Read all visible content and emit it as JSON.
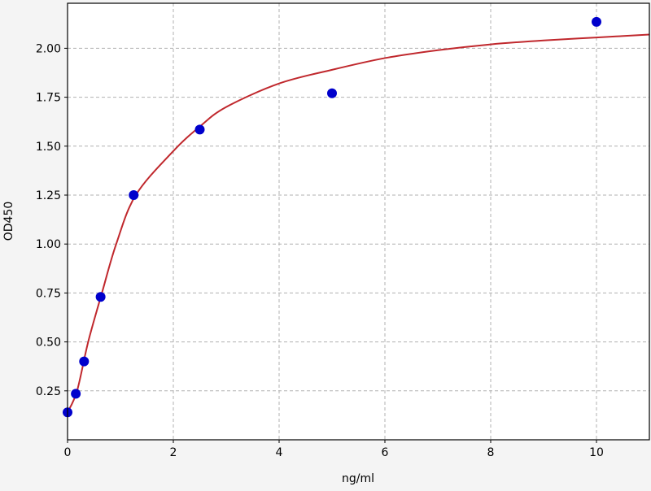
{
  "chart_data": {
    "type": "scatter",
    "title": "",
    "xlabel": "ng/ml",
    "ylabel": "OD450",
    "xlim": [
      0,
      11
    ],
    "ylim": [
      0.0,
      2.23
    ],
    "grid": true,
    "x_ticks": [
      0,
      2,
      4,
      6,
      8,
      10
    ],
    "x_tick_labels": [
      "0",
      "2",
      "4",
      "6",
      "8",
      "10"
    ],
    "y_ticks": [
      0.25,
      0.5,
      0.75,
      1.0,
      1.25,
      1.5,
      1.75,
      2.0
    ],
    "y_tick_labels": [
      "0.25",
      "0.50",
      "0.75",
      "1.00",
      "1.25",
      "1.50",
      "1.75",
      "2.00"
    ],
    "series": [
      {
        "type": "scatter",
        "color": "#0000cc",
        "x": [
          0,
          0.156,
          0.3125,
          0.625,
          1.25,
          2.5,
          5,
          10
        ],
        "y": [
          0.14,
          0.235,
          0.4,
          0.73,
          1.25,
          1.585,
          1.77,
          2.135
        ]
      },
      {
        "type": "line",
        "color": "#c0282d",
        "x": [
          0,
          0.18,
          0.39,
          0.65,
          0.92,
          1.29,
          2,
          2.5,
          3,
          4,
          5,
          6,
          7,
          8,
          9,
          10,
          11
        ],
        "y": [
          0.14,
          0.25,
          0.5,
          0.75,
          1.0,
          1.25,
          1.475,
          1.6,
          1.7,
          1.82,
          1.89,
          1.95,
          1.99,
          2.02,
          2.04,
          2.055,
          2.07
        ]
      }
    ]
  }
}
